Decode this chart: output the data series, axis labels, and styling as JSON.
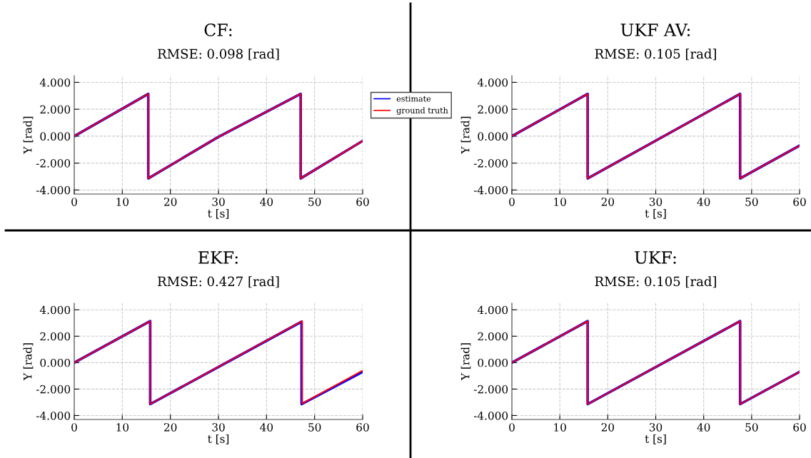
{
  "chart_data": [
    {
      "type": "line",
      "title": "CF:",
      "subtitle": "RMSE: 0.098 [rad]",
      "xlabel": "t [s]",
      "ylabel": "Y [rad]",
      "xlim": [
        0,
        60
      ],
      "ylim": [
        -4.3,
        4.5
      ],
      "xticks": [
        0,
        10,
        20,
        30,
        40,
        50,
        60
      ],
      "yticks": [
        {
          "value": -4,
          "label": "-4.000"
        },
        {
          "value": -2,
          "label": "-2.000"
        },
        {
          "value": 0,
          "label": "0.000"
        },
        {
          "value": 2,
          "label": "2.000"
        },
        {
          "value": 4,
          "label": "4.000"
        }
      ],
      "grid": true,
      "legend": "right",
      "marker": "none",
      "line_style": "solid",
      "series": [
        {
          "name": "estimate",
          "color": "#0000ff",
          "x": [
            0,
            15.4,
            15.4,
            30,
            47.1,
            47.1,
            60
          ],
          "values": [
            0,
            3.14,
            -3.14,
            -0.05,
            3.14,
            -3.14,
            -0.35
          ]
        },
        {
          "name": "ground truth",
          "color": "#ff0000",
          "x": [
            0,
            15.4,
            15.4,
            30,
            47.1,
            47.1,
            60
          ],
          "values": [
            0,
            3.14,
            -3.14,
            -0.05,
            3.14,
            -3.14,
            -0.35
          ]
        }
      ]
    },
    {
      "type": "line",
      "title": "EKF:",
      "subtitle": "RMSE: 0.427 [rad]",
      "xlabel": "t [s]",
      "ylabel": "Y [rad]",
      "xlim": [
        0,
        60
      ],
      "ylim": [
        -4.3,
        4.5
      ],
      "xticks": [
        0,
        10,
        20,
        30,
        40,
        50,
        60
      ],
      "yticks": [
        {
          "value": -4,
          "label": "-4.000"
        },
        {
          "value": -2,
          "label": "-2.000"
        },
        {
          "value": 0,
          "label": "0.000"
        },
        {
          "value": 2,
          "label": "2.000"
        },
        {
          "value": 4,
          "label": "4.000"
        }
      ],
      "grid": true,
      "marker": "none",
      "line_style": "solid",
      "series": [
        {
          "color": "#0000ff",
          "x": [
            0,
            15.8,
            15.8,
            47.3,
            47.3,
            60
          ],
          "values": [
            0,
            3.14,
            -3.14,
            3.1,
            -3.14,
            -0.7
          ]
        },
        {
          "color": "#ff0000",
          "x": [
            0,
            15.8,
            15.8,
            47.4,
            47.4,
            60
          ],
          "values": [
            0,
            3.14,
            -3.14,
            3.14,
            -3.1,
            -0.6
          ]
        }
      ]
    },
    {
      "type": "line",
      "title": "UKF AV:",
      "subtitle": "RMSE: 0.105 [rad]",
      "xlabel": "t [s]",
      "ylabel": "Y [rad]",
      "xlim": [
        0,
        60
      ],
      "ylim": [
        -4.3,
        4.5
      ],
      "xticks": [
        0,
        10,
        20,
        30,
        40,
        50,
        60
      ],
      "yticks": [
        {
          "value": -4,
          "label": "-4.000"
        },
        {
          "value": -2,
          "label": "-2.000"
        },
        {
          "value": 0,
          "label": "0.000"
        },
        {
          "value": 2,
          "label": "2.000"
        },
        {
          "value": 4,
          "label": "4.000"
        }
      ],
      "grid": true,
      "marker": "none",
      "line_style": "solid",
      "series": [
        {
          "color": "#0000ff",
          "x": [
            0,
            15.8,
            15.8,
            47.6,
            47.6,
            60
          ],
          "values": [
            0,
            3.14,
            -3.14,
            3.14,
            -3.14,
            -0.7
          ]
        },
        {
          "color": "#ff0000",
          "x": [
            0,
            15.8,
            15.8,
            47.6,
            47.6,
            60
          ],
          "values": [
            0,
            3.14,
            -3.14,
            3.14,
            -3.14,
            -0.7
          ]
        }
      ]
    },
    {
      "type": "line",
      "title": "UKF:",
      "subtitle": "RMSE: 0.105 [rad]",
      "xlabel": "t [s]",
      "ylabel": "Y [rad]",
      "xlim": [
        0,
        60
      ],
      "ylim": [
        -4.3,
        4.5
      ],
      "xticks": [
        0,
        10,
        20,
        30,
        40,
        50,
        60
      ],
      "yticks": [
        {
          "value": -4,
          "label": "-4.000"
        },
        {
          "value": -2,
          "label": "-2.000"
        },
        {
          "value": 0,
          "label": "0.000"
        },
        {
          "value": 2,
          "label": "2.000"
        },
        {
          "value": 4,
          "label": "4.000"
        }
      ],
      "grid": true,
      "marker": "none",
      "line_style": "solid",
      "series": [
        {
          "color": "#0000ff",
          "x": [
            0,
            15.8,
            15.8,
            47.6,
            47.6,
            60
          ],
          "values": [
            0,
            3.14,
            -3.14,
            3.14,
            -3.14,
            -0.7
          ]
        },
        {
          "color": "#ff0000",
          "x": [
            0,
            15.8,
            15.8,
            47.6,
            47.6,
            60
          ],
          "values": [
            0,
            3.14,
            -3.14,
            3.14,
            -3.14,
            -0.7
          ]
        }
      ]
    }
  ]
}
